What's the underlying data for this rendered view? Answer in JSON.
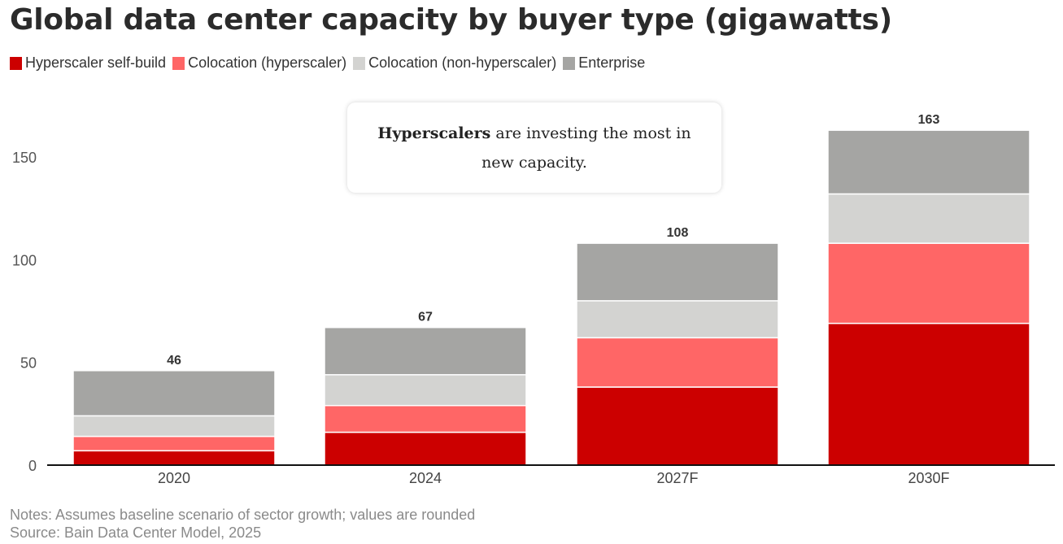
{
  "title": "Global data center capacity by buyer type (gigawatts)",
  "legend": [
    {
      "label": "Hyperscaler self-build",
      "color": "#cc0000"
    },
    {
      "label": "Colocation (hyperscaler)",
      "color": "#ff6666"
    },
    {
      "label": "Colocation (non-hyperscaler)",
      "color": "#d3d3d1"
    },
    {
      "label": "Enterprise",
      "color": "#a5a5a3"
    }
  ],
  "callout": {
    "bold": "Hyperscalers",
    "text": " are investing the most in new capacity."
  },
  "notes": {
    "line1": "Notes: Assumes baseline scenario of sector growth; values are rounded",
    "line2": "Source: Bain Data Center Model, 2025"
  },
  "chart_data": {
    "type": "bar",
    "stacked": true,
    "title": "Global data center capacity by buyer type (gigawatts)",
    "xlabel": "",
    "ylabel": "",
    "ylim": [
      0,
      165
    ],
    "yticks": [
      0,
      50,
      100,
      150
    ],
    "grid": false,
    "legend_position": "top-left",
    "categories": [
      "2020",
      "2024",
      "2027F",
      "2030F"
    ],
    "totals": [
      46,
      67,
      108,
      163
    ],
    "series": [
      {
        "name": "Hyperscaler self-build",
        "color": "#cc0000",
        "values": [
          7,
          16,
          38,
          69
        ]
      },
      {
        "name": "Colocation (hyperscaler)",
        "color": "#ff6666",
        "values": [
          7,
          13,
          24,
          39
        ]
      },
      {
        "name": "Colocation (non-hyperscaler)",
        "color": "#d3d3d1",
        "values": [
          10,
          15,
          18,
          24
        ]
      },
      {
        "name": "Enterprise",
        "color": "#a5a5a3",
        "values": [
          22,
          23,
          28,
          31
        ]
      }
    ]
  }
}
